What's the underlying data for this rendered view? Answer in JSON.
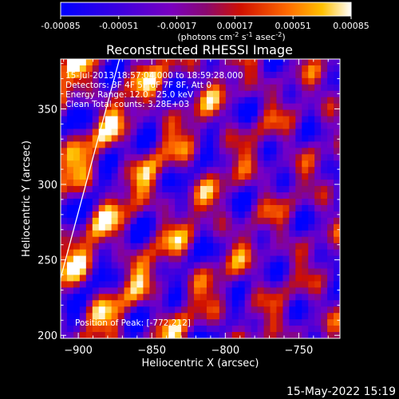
{
  "chart_data": {
    "type": "heatmap",
    "title": "Reconstructed RHESSI Image",
    "xlabel": "Heliocentric X (arcsec)",
    "ylabel": "Heliocentric Y (arcsec)",
    "xlim": [
      -912,
      -722
    ],
    "ylim": [
      198,
      383
    ],
    "x_ticks": [
      -900,
      -850,
      -800,
      -750
    ],
    "y_ticks": [
      200,
      250,
      300,
      350
    ],
    "colorbar": {
      "range": [
        -0.00085,
        0.00085
      ],
      "ticks": [
        -0.00085,
        -0.00051,
        -0.00017,
        0.00017,
        0.00051,
        0.00085
      ],
      "tick_labels": [
        "-0.00085",
        "-0.00051",
        "-0.00017",
        "0.00017",
        "0.00051",
        "0.00085"
      ],
      "units_main": "(photons cm",
      "units_sup1": "-2",
      "units_mid1": " s",
      "units_sup2": "-1",
      "units_mid2": " asec",
      "units_sup3": "-2",
      "units_end": ")"
    },
    "annotations": {
      "time_range": "15-Jul-2013 18:57:04.000 to 18:59:28.000",
      "detectors": "Detectors: 3F 4F 5F 6F 7F 8F, Att 0",
      "energy": "Energy Range: 12.0 - 25.0 keV",
      "clean": "Clean    Total counts: 3.28E+03",
      "position": "Position of Peak: [-772,212]"
    },
    "limb_line": {
      "x": [
        -912,
        -872
      ],
      "y": [
        238,
        383
      ]
    }
  },
  "footer": {
    "timestamp": "15-May-2022 15:19"
  }
}
